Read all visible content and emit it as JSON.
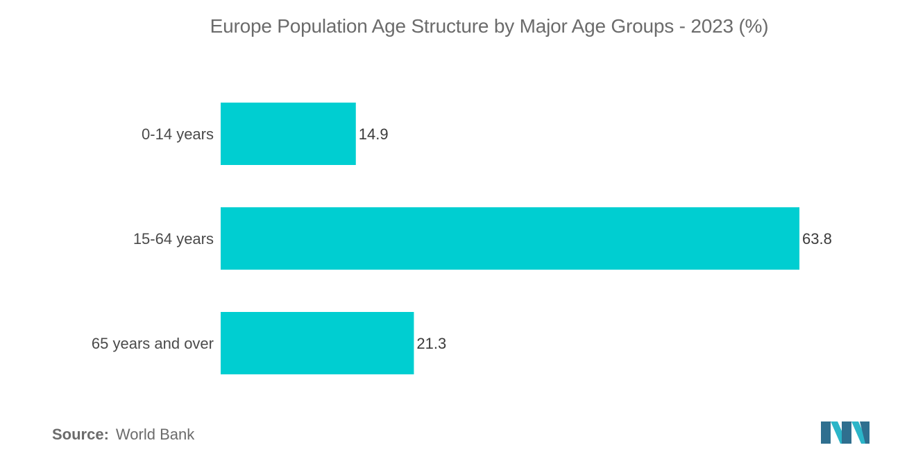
{
  "chart_data": {
    "type": "bar",
    "orientation": "horizontal",
    "title": "Europe Population Age Structure by Major Age Groups - 2023 (%)",
    "categories": [
      "0-14 years",
      "15-64 years",
      "65 years and over"
    ],
    "values": [
      14.9,
      63.8,
      21.3
    ],
    "value_labels": [
      "14.9",
      "63.8",
      "21.3"
    ],
    "xlim": [
      0,
      63.8
    ],
    "xlabel": "",
    "ylabel": "",
    "grid": false,
    "legend": "none",
    "bar_color": "#00CED1"
  },
  "source": {
    "label": "Source:",
    "value": "World Bank"
  },
  "colors": {
    "logo_dark": "#2f6f8f",
    "logo_light": "#2bb5c8"
  }
}
